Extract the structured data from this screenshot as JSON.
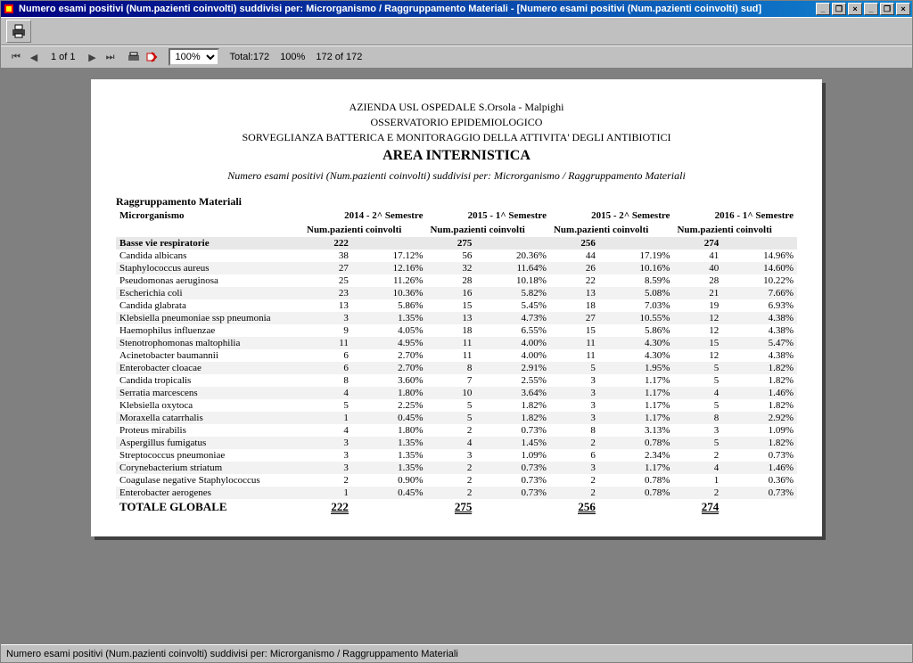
{
  "window": {
    "title": "Numero esami positivi (Num.pazienti coinvolti) suddivisi per: Microrganismo  /  Raggruppamento Materiali - [Numero esami positivi (Num.pazienti coinvolti) sud]"
  },
  "toolbar": {
    "page_of": "1 of 1",
    "zoom": "100%",
    "total_label": "Total:172",
    "pct": "100%",
    "range": "172 of 172"
  },
  "report": {
    "hdr1": "AZIENDA USL OSPEDALE S.Orsola - Malpighi",
    "hdr2": "OSSERVATORIO EPIDEMIOLOGICO",
    "hdr3": "SORVEGLIANZA BATTERICA E MONITORAGGIO DELLA ATTIVITA' DEGLI ANTIBIOTICI",
    "hdr_big": "AREA INTERNISTICA",
    "hdr_italic": "Numero esami positivi (Num.pazienti coinvolti) suddivisi per: Microrganismo  /  Raggruppamento Materiali",
    "section": "Raggruppamento Materiali",
    "sub": "Microrganismo",
    "col_sub": "Num.pazienti coinvolti",
    "periods": [
      "2014 - 2^ Semestre",
      "2015 - 1^ Semestre",
      "2015 - 2^ Semestre",
      "2016 - 1^ Semestre"
    ],
    "group": {
      "name": "Basse vie respiratorie",
      "totals": [
        "222",
        "275",
        "256",
        "274"
      ]
    },
    "rows": [
      {
        "name": "Candida albicans",
        "v": [
          [
            "38",
            "17.12%"
          ],
          [
            "56",
            "20.36%"
          ],
          [
            "44",
            "17.19%"
          ],
          [
            "41",
            "14.96%"
          ]
        ]
      },
      {
        "name": "Staphylococcus aureus",
        "v": [
          [
            "27",
            "12.16%"
          ],
          [
            "32",
            "11.64%"
          ],
          [
            "26",
            "10.16%"
          ],
          [
            "40",
            "14.60%"
          ]
        ]
      },
      {
        "name": "Pseudomonas aeruginosa",
        "v": [
          [
            "25",
            "11.26%"
          ],
          [
            "28",
            "10.18%"
          ],
          [
            "22",
            "8.59%"
          ],
          [
            "28",
            "10.22%"
          ]
        ]
      },
      {
        "name": "Escherichia coli",
        "v": [
          [
            "23",
            "10.36%"
          ],
          [
            "16",
            "5.82%"
          ],
          [
            "13",
            "5.08%"
          ],
          [
            "21",
            "7.66%"
          ]
        ]
      },
      {
        "name": "Candida glabrata",
        "v": [
          [
            "13",
            "5.86%"
          ],
          [
            "15",
            "5.45%"
          ],
          [
            "18",
            "7.03%"
          ],
          [
            "19",
            "6.93%"
          ]
        ]
      },
      {
        "name": "Klebsiella pneumoniae ssp pneumonia",
        "v": [
          [
            "3",
            "1.35%"
          ],
          [
            "13",
            "4.73%"
          ],
          [
            "27",
            "10.55%"
          ],
          [
            "12",
            "4.38%"
          ]
        ]
      },
      {
        "name": "Haemophilus influenzae",
        "v": [
          [
            "9",
            "4.05%"
          ],
          [
            "18",
            "6.55%"
          ],
          [
            "15",
            "5.86%"
          ],
          [
            "12",
            "4.38%"
          ]
        ]
      },
      {
        "name": "Stenotrophomonas maltophilia",
        "v": [
          [
            "11",
            "4.95%"
          ],
          [
            "11",
            "4.00%"
          ],
          [
            "11",
            "4.30%"
          ],
          [
            "15",
            "5.47%"
          ]
        ]
      },
      {
        "name": "Acinetobacter baumannii",
        "v": [
          [
            "6",
            "2.70%"
          ],
          [
            "11",
            "4.00%"
          ],
          [
            "11",
            "4.30%"
          ],
          [
            "12",
            "4.38%"
          ]
        ]
      },
      {
        "name": "Enterobacter cloacae",
        "v": [
          [
            "6",
            "2.70%"
          ],
          [
            "8",
            "2.91%"
          ],
          [
            "5",
            "1.95%"
          ],
          [
            "5",
            "1.82%"
          ]
        ]
      },
      {
        "name": "Candida tropicalis",
        "v": [
          [
            "8",
            "3.60%"
          ],
          [
            "7",
            "2.55%"
          ],
          [
            "3",
            "1.17%"
          ],
          [
            "5",
            "1.82%"
          ]
        ]
      },
      {
        "name": "Serratia marcescens",
        "v": [
          [
            "4",
            "1.80%"
          ],
          [
            "10",
            "3.64%"
          ],
          [
            "3",
            "1.17%"
          ],
          [
            "4",
            "1.46%"
          ]
        ]
      },
      {
        "name": "Klebsiella oxytoca",
        "v": [
          [
            "5",
            "2.25%"
          ],
          [
            "5",
            "1.82%"
          ],
          [
            "3",
            "1.17%"
          ],
          [
            "5",
            "1.82%"
          ]
        ]
      },
      {
        "name": "Moraxella catarrhalis",
        "v": [
          [
            "1",
            "0.45%"
          ],
          [
            "5",
            "1.82%"
          ],
          [
            "3",
            "1.17%"
          ],
          [
            "8",
            "2.92%"
          ]
        ]
      },
      {
        "name": "Proteus mirabilis",
        "v": [
          [
            "4",
            "1.80%"
          ],
          [
            "2",
            "0.73%"
          ],
          [
            "8",
            "3.13%"
          ],
          [
            "3",
            "1.09%"
          ]
        ]
      },
      {
        "name": "Aspergillus fumigatus",
        "v": [
          [
            "3",
            "1.35%"
          ],
          [
            "4",
            "1.45%"
          ],
          [
            "2",
            "0.78%"
          ],
          [
            "5",
            "1.82%"
          ]
        ]
      },
      {
        "name": "Streptococcus pneumoniae",
        "v": [
          [
            "3",
            "1.35%"
          ],
          [
            "3",
            "1.09%"
          ],
          [
            "6",
            "2.34%"
          ],
          [
            "2",
            "0.73%"
          ]
        ]
      },
      {
        "name": "Corynebacterium striatum",
        "v": [
          [
            "3",
            "1.35%"
          ],
          [
            "2",
            "0.73%"
          ],
          [
            "3",
            "1.17%"
          ],
          [
            "4",
            "1.46%"
          ]
        ]
      },
      {
        "name": "Coagulase negative Staphylococcus",
        "v": [
          [
            "2",
            "0.90%"
          ],
          [
            "2",
            "0.73%"
          ],
          [
            "2",
            "0.78%"
          ],
          [
            "1",
            "0.36%"
          ]
        ]
      },
      {
        "name": "Enterobacter aerogenes",
        "v": [
          [
            "1",
            "0.45%"
          ],
          [
            "2",
            "0.73%"
          ],
          [
            "2",
            "0.78%"
          ],
          [
            "2",
            "0.73%"
          ]
        ]
      }
    ],
    "total_label": "TOTALE GLOBALE",
    "total_values": [
      "222",
      "275",
      "256",
      "274"
    ]
  },
  "statusbar": {
    "text": "Numero esami positivi (Num.pazienti coinvolti) suddivisi per: Microrganismo  /  Raggruppamento Materiali"
  }
}
